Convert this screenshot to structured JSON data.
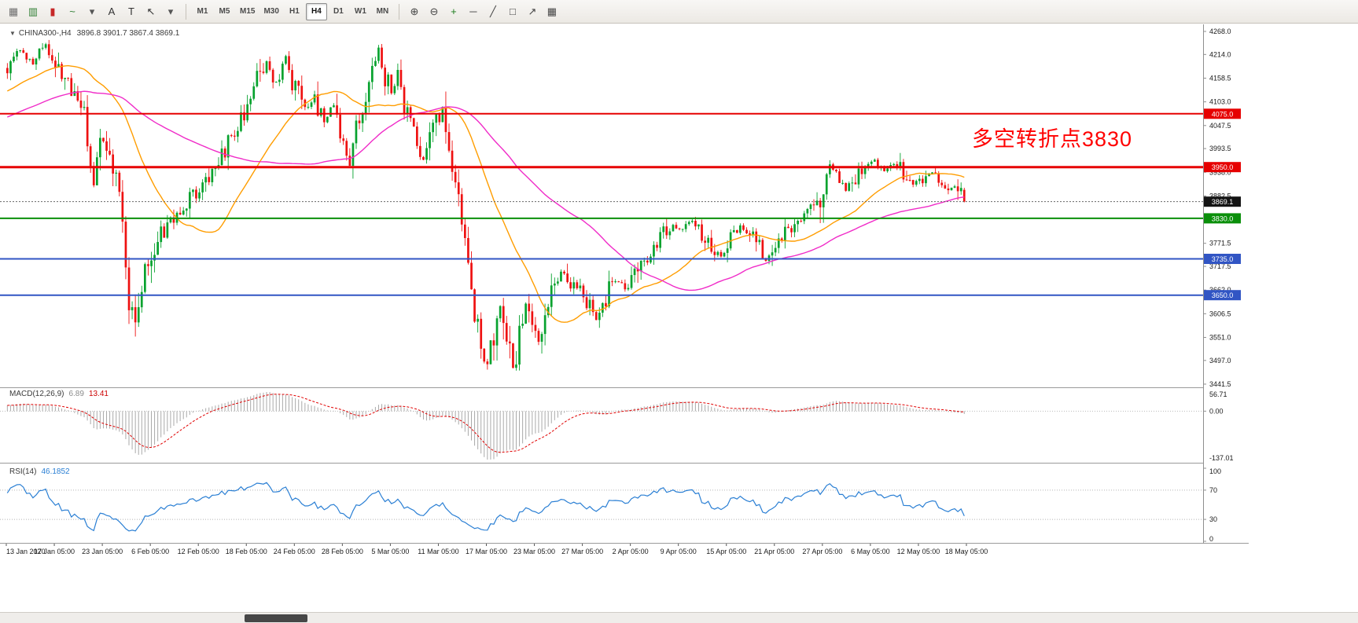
{
  "toolbar": {
    "left_icons": [
      {
        "name": "charts-grid-icon",
        "glyph": "▦",
        "color": "#6e6e6e"
      },
      {
        "name": "bar-chart-icon",
        "glyph": "▥",
        "color": "#2e7d32"
      },
      {
        "name": "candlestick-chart-icon",
        "glyph": "▮",
        "color": "#c62828"
      },
      {
        "name": "line-chart-icon",
        "glyph": "~",
        "color": "#2e7d32"
      },
      {
        "name": "chart-type-caret-icon",
        "glyph": "▾",
        "color": "#555555"
      },
      {
        "name": "text-label-icon",
        "glyph": "A",
        "color": "#333333"
      },
      {
        "name": "text-box-icon",
        "glyph": "T",
        "color": "#333333"
      },
      {
        "name": "cursor-tool-icon",
        "glyph": "↖",
        "color": "#333333"
      },
      {
        "name": "tools-caret-icon",
        "glyph": "▾",
        "color": "#555555"
      }
    ],
    "timeframes": [
      "M1",
      "M5",
      "M15",
      "M30",
      "H1",
      "H4",
      "D1",
      "W1",
      "MN"
    ],
    "active_timeframe": "H4",
    "right_icons": [
      {
        "name": "zoom-in-icon",
        "glyph": "⊕",
        "color": "#444444"
      },
      {
        "name": "zoom-out-icon",
        "glyph": "⊖",
        "color": "#444444"
      },
      {
        "name": "indicators-icon",
        "glyph": "+",
        "color": "#1e7d1e"
      },
      {
        "name": "horizontal-line-icon",
        "glyph": "─",
        "color": "#444444"
      },
      {
        "name": "trendline-icon",
        "glyph": "╱",
        "color": "#444444"
      },
      {
        "name": "rectangle-tool-icon",
        "glyph": "□",
        "color": "#444444"
      },
      {
        "name": "arrow-tool-icon",
        "glyph": "↗",
        "color": "#444444"
      },
      {
        "name": "grid-toggle-icon",
        "glyph": "▦",
        "color": "#444444"
      }
    ]
  },
  "chart": {
    "symbol_label": "CHINA300-,H4",
    "ohlc": "3896.8 3901.7 3867.4 3869.1",
    "dropdown_glyph": "▼",
    "annotation": {
      "text": "多空转折点3830",
      "color": "#ff0000"
    },
    "current_price_label": "3869.1"
  },
  "chart_data": {
    "type": "candlestick",
    "symbol": "CHINA300-",
    "timeframe": "H4",
    "bar_count": 300,
    "current_price": 3869.1,
    "last_bar": {
      "open": 3896.8,
      "high": 3901.7,
      "low": 3867.4,
      "close": 3869.1
    },
    "candle_colors": {
      "up": "#07a22e",
      "down": "#ee1111"
    },
    "y_axis": {
      "min": 3441.5,
      "max": 4268.0,
      "ticks": [
        "4268.0",
        "4214.0",
        "4158.5",
        "4103.0",
        "4047.5",
        "3993.5",
        "3938.0",
        "3882.5",
        "3827.0",
        "3771.5",
        "3717.5",
        "3662.0",
        "3606.5",
        "3551.0",
        "3497.0",
        "3441.5"
      ]
    },
    "x_axis": {
      "bars_per_label": 15,
      "labels": [
        "13 Jan 2020",
        "17 Jan 05:00",
        "23 Jan 05:00",
        "6 Feb 05:00",
        "12 Feb 05:00",
        "18 Feb 05:00",
        "24 Feb 05:00",
        "28 Feb 05:00",
        "5 Mar 05:00",
        "11 Mar 05:00",
        "17 Mar 05:00",
        "23 Mar 05:00",
        "27 Mar 05:00",
        "2 Apr 05:00",
        "9 Apr 05:00",
        "15 Apr 05:00",
        "21 Apr 05:00",
        "27 Apr 05:00",
        "6 May 05:00",
        "12 May 05:00",
        "18 May 05:00"
      ]
    },
    "prehistory_keypoints": [
      [
        -80,
        3955
      ],
      [
        -55,
        4010
      ],
      [
        -30,
        4080
      ],
      [
        -12,
        4135
      ],
      [
        -1,
        4175
      ]
    ],
    "close_path_keypoints": [
      [
        0,
        4185
      ],
      [
        4,
        4225
      ],
      [
        8,
        4195
      ],
      [
        12,
        4235
      ],
      [
        15,
        4205
      ],
      [
        19,
        4150
      ],
      [
        23,
        4105
      ],
      [
        25,
        4020
      ],
      [
        27,
        3915
      ],
      [
        29,
        4035
      ],
      [
        31,
        3995
      ],
      [
        33,
        3945
      ],
      [
        35,
        3902
      ],
      [
        36,
        3795
      ],
      [
        38,
        3625
      ],
      [
        40,
        3585
      ],
      [
        42,
        3680
      ],
      [
        45,
        3755
      ],
      [
        48,
        3795
      ],
      [
        52,
        3825
      ],
      [
        56,
        3855
      ],
      [
        60,
        3905
      ],
      [
        64,
        3945
      ],
      [
        68,
        3985
      ],
      [
        72,
        4035
      ],
      [
        75,
        4095
      ],
      [
        78,
        4150
      ],
      [
        81,
        4195
      ],
      [
        84,
        4150
      ],
      [
        87,
        4205
      ],
      [
        90,
        4140
      ],
      [
        93,
        4085
      ],
      [
        96,
        4120
      ],
      [
        99,
        4055
      ],
      [
        102,
        4100
      ],
      [
        105,
        4000
      ],
      [
        107,
        3965
      ],
      [
        109,
        4040
      ],
      [
        112,
        4120
      ],
      [
        114,
        4185
      ],
      [
        116,
        4235
      ],
      [
        118,
        4170
      ],
      [
        120,
        4125
      ],
      [
        122,
        4165
      ],
      [
        124,
        4095
      ],
      [
        127,
        4040
      ],
      [
        130,
        3965
      ],
      [
        132,
        4000
      ],
      [
        134,
        4045
      ],
      [
        136,
        4075
      ],
      [
        138,
        4005
      ],
      [
        140,
        3915
      ],
      [
        142,
        3830
      ],
      [
        144,
        3735
      ],
      [
        146,
        3610
      ],
      [
        148,
        3525
      ],
      [
        150,
        3485
      ],
      [
        152,
        3565
      ],
      [
        154,
        3625
      ],
      [
        156,
        3545
      ],
      [
        158,
        3485
      ],
      [
        160,
        3555
      ],
      [
        162,
        3635
      ],
      [
        164,
        3570
      ],
      [
        166,
        3525
      ],
      [
        168,
        3605
      ],
      [
        170,
        3665
      ],
      [
        173,
        3705
      ],
      [
        176,
        3680
      ],
      [
        179,
        3655
      ],
      [
        182,
        3625
      ],
      [
        184,
        3595
      ],
      [
        187,
        3645
      ],
      [
        190,
        3685
      ],
      [
        193,
        3665
      ],
      [
        196,
        3705
      ],
      [
        199,
        3735
      ],
      [
        202,
        3765
      ],
      [
        205,
        3795
      ],
      [
        208,
        3815
      ],
      [
        211,
        3800
      ],
      [
        214,
        3825
      ],
      [
        217,
        3795
      ],
      [
        220,
        3765
      ],
      [
        223,
        3745
      ],
      [
        226,
        3785
      ],
      [
        229,
        3815
      ],
      [
        232,
        3795
      ],
      [
        235,
        3765
      ],
      [
        237,
        3735
      ],
      [
        240,
        3765
      ],
      [
        243,
        3795
      ],
      [
        246,
        3815
      ],
      [
        249,
        3835
      ],
      [
        252,
        3855
      ],
      [
        255,
        3905
      ],
      [
        257,
        3955
      ],
      [
        259,
        3925
      ],
      [
        262,
        3895
      ],
      [
        265,
        3925
      ],
      [
        268,
        3955
      ],
      [
        271,
        3965
      ],
      [
        274,
        3945
      ],
      [
        277,
        3958
      ],
      [
        280,
        3935
      ],
      [
        283,
        3905
      ],
      [
        286,
        3925
      ],
      [
        289,
        3940
      ],
      [
        292,
        3915
      ],
      [
        295,
        3898
      ],
      [
        297,
        3905
      ],
      [
        299,
        3869
      ]
    ],
    "moving_averages": [
      {
        "name": "ma-fast",
        "period": 30,
        "color": "#ff9d00"
      },
      {
        "name": "ma-slow",
        "period": 72,
        "color": "#f02cc8"
      }
    ],
    "horizontal_levels": [
      {
        "price": 4075.0,
        "label": "4075.0",
        "color": "#e60000",
        "width": 2
      },
      {
        "price": 3950.0,
        "label": "3950.0",
        "color": "#e60000",
        "width": 3
      },
      {
        "price": 3830.0,
        "label": "3830.0",
        "color": "#0a8f0a",
        "width": 2
      },
      {
        "price": 3735.0,
        "label": "3735.0",
        "color": "#3155c4",
        "width": 2
      },
      {
        "price": 3650.0,
        "label": "3650.0",
        "color": "#3155c4",
        "width": 2
      }
    ],
    "indicators": {
      "macd": {
        "label": "MACD(12,26,9)",
        "value_main": "6.89",
        "value_signal": "13.41",
        "params": {
          "fast": 12,
          "slow": 26,
          "signal": 9
        },
        "axis_ticks": [
          "56.71",
          "0.00",
          "-137.01"
        ],
        "max": 56.71,
        "min": -137.01,
        "histogram_color": "#a9a9a9",
        "signal_color": "#e00000"
      },
      "rsi": {
        "label": "RSI(14)",
        "value": "46.1852",
        "period": 14,
        "axis_ticks": [
          "100",
          "70",
          "30",
          "0"
        ],
        "levels": [
          70,
          30
        ],
        "line_color": "#2a7fd4"
      }
    }
  }
}
